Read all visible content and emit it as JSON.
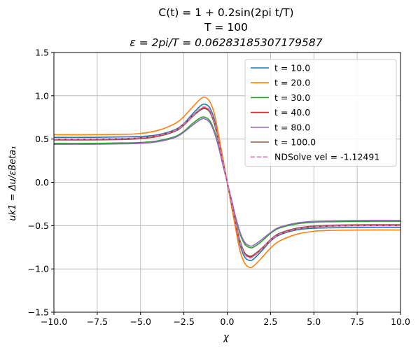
{
  "chart_data": {
    "type": "line",
    "title_lines": [
      "C(t) = 1 + 0.2sin(2pi t/T)",
      "T = 100",
      "ε = 2pi/T = 0.06283185307179587"
    ],
    "xlabel": "χ",
    "ylabel": "uk1 = Δu/εBeta₁",
    "xlim": [
      -10.0,
      10.0
    ],
    "ylim": [
      -1.5,
      1.5
    ],
    "x_ticks": [
      -10.0,
      -7.5,
      -5.0,
      -2.5,
      0.0,
      2.5,
      5.0,
      7.5,
      10.0
    ],
    "x_tick_labels": [
      "−10.0",
      "−7.5",
      "−5.0",
      "−2.5",
      "0.0",
      "2.5",
      "5.0",
      "7.5",
      "10.0"
    ],
    "y_ticks": [
      -1.5,
      -1.0,
      -0.5,
      0.0,
      0.5,
      1.0,
      1.5
    ],
    "y_tick_labels": [
      "−1.5",
      "−1.0",
      "−0.5",
      "0.0",
      "0.5",
      "1.0",
      "1.5"
    ],
    "grid": true,
    "legend_position": "top-right",
    "series": [
      {
        "name": "t = 10.0",
        "color": "#1f77b4",
        "dashed": false,
        "x": [
          -10,
          -8,
          -6,
          -5,
          -4,
          -3,
          -2.5,
          -2,
          -1.5,
          -1.25,
          -1,
          -0.75,
          -0.5,
          -0.25,
          0,
          0.25,
          0.5,
          0.75,
          1,
          1.25,
          1.5,
          2,
          2.5,
          3,
          4,
          5,
          6,
          8,
          10
        ],
        "y": [
          0.52,
          0.52,
          0.525,
          0.53,
          0.55,
          0.61,
          0.68,
          0.79,
          0.89,
          0.9,
          0.86,
          0.73,
          0.5,
          0.25,
          0.0,
          -0.25,
          -0.5,
          -0.73,
          -0.86,
          -0.9,
          -0.89,
          -0.79,
          -0.68,
          -0.61,
          -0.55,
          -0.53,
          -0.525,
          -0.52,
          -0.52
        ]
      },
      {
        "name": "t = 20.0",
        "color": "#ff7f0e",
        "dashed": false,
        "x": [
          -10,
          -8,
          -6,
          -5,
          -4,
          -3,
          -2.5,
          -2,
          -1.5,
          -1.25,
          -1,
          -0.75,
          -0.5,
          -0.25,
          0,
          0.25,
          0.5,
          0.75,
          1,
          1.25,
          1.5,
          2,
          2.5,
          3,
          4,
          5,
          6,
          8,
          10
        ],
        "y": [
          0.55,
          0.55,
          0.555,
          0.565,
          0.6,
          0.68,
          0.76,
          0.87,
          0.97,
          0.98,
          0.93,
          0.8,
          0.55,
          0.28,
          0.0,
          -0.28,
          -0.55,
          -0.8,
          -0.93,
          -0.98,
          -0.97,
          -0.87,
          -0.76,
          -0.68,
          -0.6,
          -0.565,
          -0.555,
          -0.55,
          -0.55
        ]
      },
      {
        "name": "t = 30.0",
        "color": "#2ca02c",
        "dashed": false,
        "x": [
          -10,
          -8,
          -6,
          -5,
          -4,
          -3,
          -2.5,
          -2,
          -1.5,
          -1.25,
          -1,
          -0.75,
          -0.5,
          -0.25,
          0,
          0.25,
          0.5,
          0.75,
          1,
          1.25,
          1.5,
          2,
          2.5,
          3,
          4,
          5,
          6,
          8,
          10
        ],
        "y": [
          0.45,
          0.45,
          0.455,
          0.46,
          0.48,
          0.53,
          0.59,
          0.68,
          0.75,
          0.75,
          0.71,
          0.6,
          0.42,
          0.21,
          0.0,
          -0.21,
          -0.42,
          -0.6,
          -0.71,
          -0.75,
          -0.75,
          -0.68,
          -0.59,
          -0.53,
          -0.48,
          -0.46,
          -0.455,
          -0.45,
          -0.45
        ]
      },
      {
        "name": "t = 40.0",
        "color": "#d62728",
        "dashed": false,
        "x": [
          -10,
          -8,
          -6,
          -5,
          -4,
          -3,
          -2.5,
          -2,
          -1.5,
          -1.25,
          -1,
          -0.75,
          -0.5,
          -0.25,
          0,
          0.25,
          0.5,
          0.75,
          1,
          1.25,
          1.5,
          2,
          2.5,
          3,
          4,
          5,
          6,
          8,
          10
        ],
        "y": [
          0.5,
          0.5,
          0.505,
          0.515,
          0.54,
          0.6,
          0.67,
          0.77,
          0.85,
          0.86,
          0.82,
          0.69,
          0.48,
          0.24,
          0.0,
          -0.24,
          -0.48,
          -0.69,
          -0.82,
          -0.86,
          -0.85,
          -0.77,
          -0.67,
          -0.6,
          -0.54,
          -0.515,
          -0.505,
          -0.5,
          -0.5
        ]
      },
      {
        "name": "t = 80.0",
        "color": "#9467bd",
        "dashed": false,
        "x": [
          -10,
          -8,
          -6,
          -5,
          -4,
          -3,
          -2.5,
          -2,
          -1.5,
          -1.25,
          -1,
          -0.75,
          -0.5,
          -0.25,
          0,
          0.25,
          0.5,
          0.75,
          1,
          1.25,
          1.5,
          2,
          2.5,
          3,
          4,
          5,
          6,
          8,
          10
        ],
        "y": [
          0.44,
          0.44,
          0.445,
          0.45,
          0.47,
          0.52,
          0.58,
          0.66,
          0.73,
          0.73,
          0.69,
          0.58,
          0.41,
          0.2,
          0.0,
          -0.2,
          -0.41,
          -0.58,
          -0.69,
          -0.73,
          -0.73,
          -0.66,
          -0.58,
          -0.52,
          -0.47,
          -0.45,
          -0.445,
          -0.44,
          -0.44
        ]
      },
      {
        "name": "t = 100.0",
        "color": "#8c564b",
        "dashed": false,
        "x": [
          -10,
          -8,
          -6,
          -5,
          -4,
          -3,
          -2.5,
          -2,
          -1.5,
          -1.25,
          -1,
          -0.75,
          -0.5,
          -0.25,
          0,
          0.25,
          0.5,
          0.75,
          1,
          1.25,
          1.5,
          2,
          2.5,
          3,
          4,
          5,
          6,
          8,
          10
        ],
        "y": [
          0.49,
          0.49,
          0.495,
          0.505,
          0.53,
          0.59,
          0.66,
          0.76,
          0.84,
          0.85,
          0.81,
          0.68,
          0.47,
          0.24,
          0.0,
          -0.24,
          -0.47,
          -0.68,
          -0.81,
          -0.85,
          -0.84,
          -0.76,
          -0.66,
          -0.59,
          -0.53,
          -0.505,
          -0.495,
          -0.49,
          -0.49
        ]
      },
      {
        "name": "NDSolve vel = -1.12491",
        "color": "#e377c2",
        "dashed": true,
        "x": [
          -10,
          -8,
          -6,
          -5,
          -4,
          -3,
          -2.5,
          -2,
          -1.5,
          -1.25,
          -1,
          -0.75,
          -0.5,
          -0.25,
          0,
          0.25,
          0.5,
          0.75,
          1,
          1.25,
          1.5,
          2,
          2.5,
          3,
          4,
          5,
          6,
          8,
          10
        ],
        "y": [
          0.5,
          0.5,
          0.505,
          0.515,
          0.54,
          0.6,
          0.67,
          0.77,
          0.86,
          0.87,
          0.83,
          0.7,
          0.48,
          0.24,
          0.0,
          -0.24,
          -0.48,
          -0.7,
          -0.83,
          -0.87,
          -0.86,
          -0.77,
          -0.67,
          -0.6,
          -0.54,
          -0.515,
          -0.505,
          -0.5,
          -0.5
        ]
      }
    ]
  }
}
